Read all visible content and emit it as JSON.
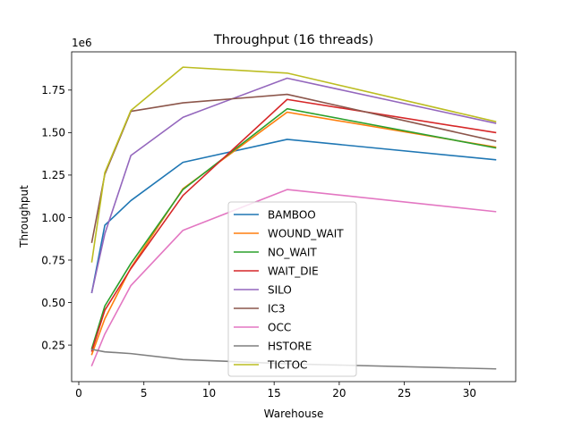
{
  "chart_data": {
    "type": "line",
    "title": "Throughput (16 threads)",
    "xlabel": "Warehouse",
    "ylabel": "Throughput",
    "y_offset_label": "1e6",
    "x": [
      1,
      2,
      4,
      8,
      16,
      32
    ],
    "xlim": [
      -0.55,
      33.55
    ],
    "ylim": [
      0.035,
      1.975
    ],
    "x_ticks": [
      0,
      5,
      10,
      15,
      20,
      25,
      30
    ],
    "x_tick_labels": [
      "0",
      "5",
      "10",
      "15",
      "20",
      "25",
      "30"
    ],
    "y_ticks": [
      0.25,
      0.5,
      0.75,
      1.0,
      1.25,
      1.5,
      1.75
    ],
    "y_tick_labels": [
      "0.25",
      "0.50",
      "0.75",
      "1.00",
      "1.25",
      "1.50",
      "1.75"
    ],
    "grid": false,
    "legend_position": "center-bottom",
    "series": [
      {
        "name": "BAMBOO",
        "color": "#1f77b4",
        "values": [
          0.56,
          0.955,
          1.1,
          1.325,
          1.46,
          1.34
        ]
      },
      {
        "name": "WOUND_WAIT",
        "color": "#ff7f0e",
        "values": [
          0.195,
          0.405,
          0.705,
          1.17,
          1.62,
          1.415
        ]
      },
      {
        "name": "NO_WAIT",
        "color": "#2ca02c",
        "values": [
          0.23,
          0.48,
          0.73,
          1.165,
          1.64,
          1.41
        ]
      },
      {
        "name": "WAIT_DIE",
        "color": "#d62728",
        "values": [
          0.215,
          0.455,
          0.7,
          1.13,
          1.695,
          1.5
        ]
      },
      {
        "name": "SILO",
        "color": "#9467bd",
        "values": [
          0.56,
          0.905,
          1.365,
          1.59,
          1.82,
          1.555
        ]
      },
      {
        "name": "IC3",
        "color": "#8c564b",
        "values": [
          0.855,
          1.255,
          1.625,
          1.675,
          1.725,
          1.45
        ]
      },
      {
        "name": "OCC",
        "color": "#e377c2",
        "values": [
          0.13,
          0.315,
          0.6,
          0.925,
          1.165,
          1.035
        ]
      },
      {
        "name": "HSTORE",
        "color": "#7f7f7f",
        "values": [
          0.225,
          0.21,
          0.2,
          0.165,
          0.14,
          0.11
        ]
      },
      {
        "name": "TICTOC",
        "color": "#bcbd22",
        "values": [
          0.74,
          1.265,
          1.63,
          1.885,
          1.85,
          1.565
        ]
      }
    ]
  }
}
